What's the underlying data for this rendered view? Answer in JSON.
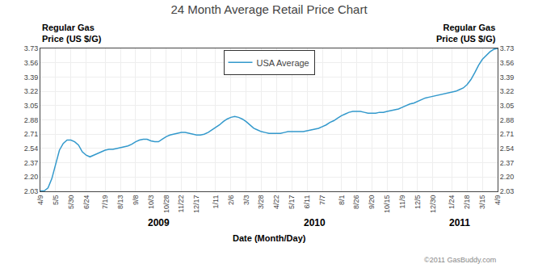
{
  "chart_data": {
    "type": "line",
    "title": "24 Month Average Retail Price Chart",
    "ylabel": "Regular Gas\nPrice (US $/G)",
    "y2label": "Regular Gas\nPrice (US $/G)",
    "xlabel": "Date (Month/Day)",
    "source": "©2011 GasBuddy.com",
    "categories": [
      "4/9",
      null,
      null,
      null,
      "5/5",
      null,
      null,
      null,
      "5/30",
      null,
      null,
      null,
      "6/24",
      null,
      null,
      null,
      null,
      "7/19",
      null,
      null,
      null,
      "8/13",
      null,
      null,
      null,
      "9/8",
      null,
      null,
      null,
      "10/3",
      null,
      null,
      null,
      "10/28",
      null,
      null,
      null,
      "11/22",
      null,
      null,
      null,
      "12/17",
      null,
      null,
      null,
      null,
      "1/11",
      null,
      null,
      null,
      "2/6",
      null,
      null,
      null,
      "3/3",
      null,
      null,
      null,
      "3/28",
      null,
      null,
      null,
      "4/22",
      null,
      null,
      null,
      "5/17",
      null,
      null,
      null,
      "6/11",
      null,
      null,
      null,
      "7/7",
      null,
      null,
      null,
      null,
      "8/1",
      null,
      null,
      null,
      "8/26",
      null,
      null,
      null,
      "9/20",
      null,
      null,
      null,
      "10/15",
      null,
      null,
      null,
      "11/9",
      null,
      null,
      null,
      "12/5",
      null,
      null,
      null,
      "12/30",
      null,
      null,
      null,
      null,
      "1/24",
      null,
      null,
      null,
      "2/18",
      null,
      null,
      null,
      "3/15",
      null,
      null,
      null,
      "4/9"
    ],
    "series": [
      {
        "name": "USA Average",
        "color": "#3399cc",
        "line_style": "solid",
        "values": [
          2.034,
          2.035,
          2.07,
          2.18,
          2.35,
          2.52,
          2.6,
          2.64,
          2.64,
          2.62,
          2.58,
          2.5,
          2.46,
          2.44,
          2.46,
          2.48,
          2.5,
          2.52,
          2.53,
          2.53,
          2.54,
          2.55,
          2.56,
          2.57,
          2.59,
          2.62,
          2.64,
          2.65,
          2.65,
          2.63,
          2.62,
          2.62,
          2.65,
          2.68,
          2.7,
          2.71,
          2.72,
          2.73,
          2.73,
          2.72,
          2.71,
          2.7,
          2.7,
          2.71,
          2.73,
          2.76,
          2.79,
          2.82,
          2.86,
          2.89,
          2.91,
          2.92,
          2.91,
          2.89,
          2.86,
          2.82,
          2.78,
          2.76,
          2.74,
          2.73,
          2.72,
          2.72,
          2.72,
          2.72,
          2.73,
          2.74,
          2.74,
          2.74,
          2.74,
          2.74,
          2.75,
          2.76,
          2.77,
          2.78,
          2.8,
          2.82,
          2.85,
          2.87,
          2.9,
          2.93,
          2.95,
          2.97,
          2.98,
          2.98,
          2.98,
          2.97,
          2.96,
          2.96,
          2.96,
          2.97,
          2.97,
          2.98,
          2.99,
          3.0,
          3.01,
          3.03,
          3.05,
          3.07,
          3.08,
          3.1,
          3.12,
          3.14,
          3.15,
          3.16,
          3.17,
          3.18,
          3.19,
          3.2,
          3.21,
          3.22,
          3.24,
          3.26,
          3.3,
          3.36,
          3.44,
          3.53,
          3.6,
          3.65,
          3.69,
          3.72,
          3.73
        ]
      }
    ],
    "ylim": [
      2.03,
      3.73
    ],
    "yticks": [
      2.03,
      {
        "value": 2.2,
        "label": "2.20"
      },
      2.37,
      2.54,
      2.71,
      2.88,
      3.05,
      3.22,
      3.39,
      3.56,
      3.73
    ],
    "y2lim": [
      2.03,
      3.73
    ],
    "y2ticks": [
      2.03,
      {
        "value": 2.2,
        "label": "2.20"
      },
      2.37,
      2.54,
      2.71,
      2.88,
      3.05,
      3.22,
      3.39,
      3.56,
      3.73
    ],
    "annotations": [
      {
        "text": "2009",
        "between": [
          "10/3",
          "10/28"
        ]
      },
      {
        "text": "2010",
        "between": [
          "6/11",
          "7/7"
        ]
      },
      {
        "text": "2011",
        "between": [
          "1/24",
          "2/18"
        ]
      }
    ],
    "grid": true,
    "legend": "upper center"
  }
}
